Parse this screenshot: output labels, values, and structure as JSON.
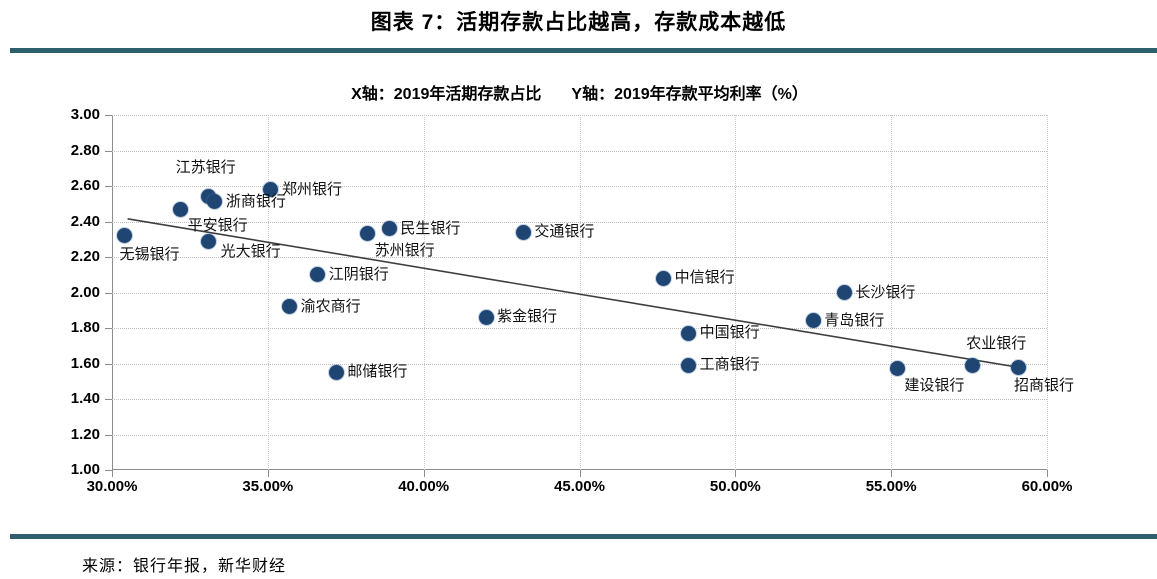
{
  "header": {
    "title": "图表 7：活期存款占比越高，存款成本越低"
  },
  "subtitle": {
    "x_axis_note": "X轴：2019年活期存款占比",
    "y_axis_note": "Y轴：2019年存款平均利率（%）"
  },
  "footer": {
    "source": "来源：银行年报，新华财经"
  },
  "colors": {
    "accent_teal": "#2D5F6D",
    "dot_navy": "#1F4573",
    "trend_line": "#3f3f3f"
  },
  "chart_data": {
    "type": "scatter",
    "title": "图表 7：活期存款占比越高，存款成本越低",
    "xlabel": "2019年活期存款占比",
    "ylabel": "2019年存款平均利率（%）",
    "xlim": [
      30,
      60
    ],
    "ylim": [
      1.0,
      3.0
    ],
    "grid": true,
    "x_tick_values": [
      30,
      35,
      40,
      45,
      50,
      55,
      60
    ],
    "x_tick_labels": [
      "30.00%",
      "35.00%",
      "40.00%",
      "45.00%",
      "50.00%",
      "55.00%",
      "60.00%"
    ],
    "y_tick_values": [
      3.0,
      2.8,
      2.6,
      2.4,
      2.2,
      2.0,
      1.8,
      1.6,
      1.4,
      1.2,
      1.0
    ],
    "y_tick_labels": [
      "3.00",
      "2.80",
      "2.60",
      "2.40",
      "2.20",
      "2.00",
      "1.80",
      "1.60",
      "1.40",
      "1.20",
      "1.00"
    ],
    "points": [
      {
        "name": "无锡银行",
        "x": 30.4,
        "y": 2.32,
        "label_placement": "below"
      },
      {
        "name": "平安银行",
        "x": 32.2,
        "y": 2.47,
        "label_placement": "below-right"
      },
      {
        "name": "江苏银行",
        "x": 33.1,
        "y": 2.54,
        "label_placement": "above-left"
      },
      {
        "name": "浙商银行",
        "x": 33.3,
        "y": 2.51,
        "label_placement": "right"
      },
      {
        "name": "光大银行",
        "x": 33.1,
        "y": 2.29,
        "label_placement": "right-below"
      },
      {
        "name": "郑州银行",
        "x": 35.1,
        "y": 2.58,
        "label_placement": "right"
      },
      {
        "name": "渝农商行",
        "x": 35.7,
        "y": 1.92,
        "label_placement": "right"
      },
      {
        "name": "江阴银行",
        "x": 36.6,
        "y": 2.1,
        "label_placement": "right"
      },
      {
        "name": "邮储银行",
        "x": 37.2,
        "y": 1.55,
        "label_placement": "right"
      },
      {
        "name": "苏州银行",
        "x": 38.2,
        "y": 2.33,
        "label_placement": "below-right"
      },
      {
        "name": "民生银行",
        "x": 38.9,
        "y": 2.36,
        "label_placement": "right"
      },
      {
        "name": "紫金银行",
        "x": 42.0,
        "y": 1.86,
        "label_placement": "right"
      },
      {
        "name": "交通银行",
        "x": 43.2,
        "y": 2.34,
        "label_placement": "right"
      },
      {
        "name": "中信银行",
        "x": 47.7,
        "y": 2.08,
        "label_placement": "right"
      },
      {
        "name": "中国银行",
        "x": 48.5,
        "y": 1.77,
        "label_placement": "right"
      },
      {
        "name": "工商银行",
        "x": 48.5,
        "y": 1.59,
        "label_placement": "right"
      },
      {
        "name": "青岛银行",
        "x": 52.5,
        "y": 1.84,
        "label_placement": "right"
      },
      {
        "name": "长沙银行",
        "x": 53.5,
        "y": 2.0,
        "label_placement": "right"
      },
      {
        "name": "建设银行",
        "x": 55.2,
        "y": 1.57,
        "label_placement": "below-right"
      },
      {
        "name": "农业银行",
        "x": 57.6,
        "y": 1.59,
        "label_placement": "above"
      },
      {
        "name": "招商银行",
        "x": 59.1,
        "y": 1.58,
        "label_placement": "below"
      }
    ],
    "trendline": {
      "x1": 30.5,
      "y1": 2.415,
      "x2": 59.2,
      "y2": 1.575
    },
    "legend": null
  }
}
